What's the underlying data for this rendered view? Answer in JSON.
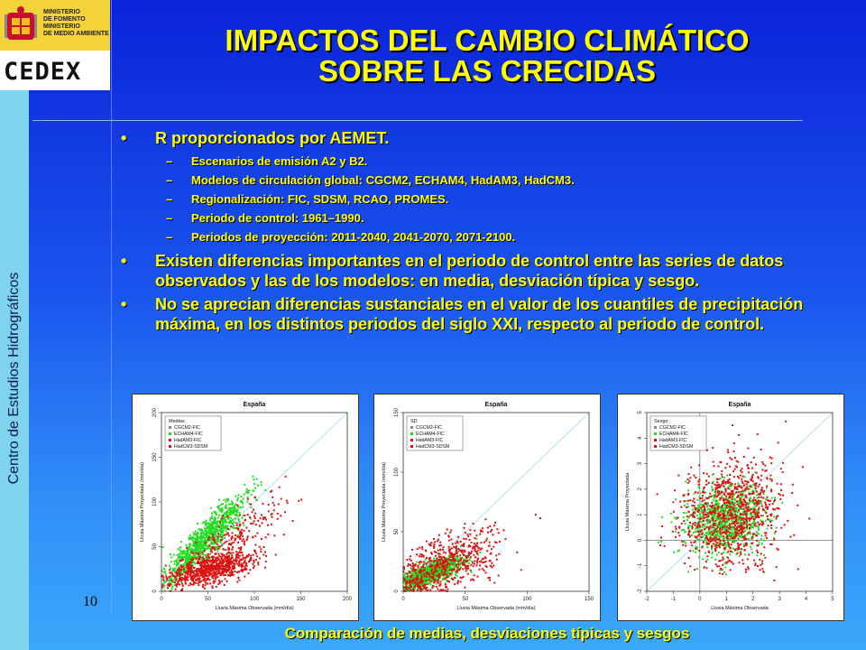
{
  "sidebar": {
    "vertical_text": "Centro de Estudios Hidrográficos"
  },
  "logos": {
    "ministry_lines": [
      "MINISTERIO",
      "DE FOMENTO",
      "MINISTERIO",
      "DE MEDIO AMBIENTE"
    ],
    "cedex_text": "CEDEX"
  },
  "title": {
    "line1": "IMPACTOS DEL CAMBIO CLIMÁTICO",
    "line2": "SOBRE LAS CRECIDAS"
  },
  "bullets": {
    "b1": "R proporcionados por AEMET.",
    "sub": [
      "Escenarios de emisión A2 y B2.",
      "Modelos de circulación global: CGCM2, ECHAM4, HadAM3, HadCM3.",
      "Regionalización: FIC, SDSM, RCAO, PROMES.",
      "Periodo de control: 1961–1990.",
      "Periodos de proyección: 2011-2040, 2041-2070, 2071-2100."
    ],
    "b2": "Existen diferencias importantes en el periodo de control entre las series de datos observados y las de los modelos: en media, desviación típica y sesgo.",
    "b3": "No se aprecian diferencias sustanciales en el valor de los cuantiles de precipitación máxima, en los distintos periodos del siglo XXI, respecto al periodo de control."
  },
  "page_number": "10",
  "caption": "Comparación de medias, desviaciones típicas y sesgos",
  "colors": {
    "title": "#ffff00",
    "green": "#22dd22",
    "red": "#dd1111",
    "grey": "#888888",
    "ref_line": "#9fd8ee"
  },
  "chart_data": [
    {
      "type": "scatter",
      "title": "España",
      "xlabel": "Lluvia Máxima Observada (mm/día)",
      "ylabel": "Lluvia Máxima Proyectada (mm/día)",
      "xlim": [
        0,
        200
      ],
      "ylim": [
        0,
        200
      ],
      "xticks": [
        "0",
        "50",
        "100",
        "150",
        "200"
      ],
      "yticks": [
        "0",
        "50",
        "100",
        "150",
        "200"
      ],
      "legend_title": "Medias",
      "legend_placement": "top-left",
      "series": [
        {
          "name": "CGCM2-FIC",
          "color": "#888888",
          "cloud": {
            "cx": 40,
            "cy": 44,
            "sx": 18,
            "sy": 18,
            "rho": 0.85,
            "n": 80
          }
        },
        {
          "name": "ECHAM4-FIC",
          "color": "#22dd22",
          "cloud": {
            "cx": 48,
            "cy": 58,
            "sx": 22,
            "sy": 24,
            "rho": 0.9,
            "n": 900
          }
        },
        {
          "name": "HadAM3-FIC",
          "color": "#dd1111",
          "cloud": {
            "cx": 55,
            "cy": 25,
            "sx": 25,
            "sy": 10,
            "rho": 0.6,
            "n": 700
          }
        },
        {
          "name": "HadCM3-SDSM",
          "color": "#dd1111",
          "cloud": {
            "cx": 75,
            "cy": 55,
            "sx": 28,
            "sy": 25,
            "rho": 0.8,
            "n": 250
          }
        }
      ]
    },
    {
      "type": "scatter",
      "title": "España",
      "xlabel": "Lluvia Máxima Observada (mm/día)",
      "ylabel": "Lluvia Máxima Proyectada (mm/día)",
      "xlim": [
        0,
        150
      ],
      "ylim": [
        0,
        150
      ],
      "xticks": [
        "0",
        "50",
        "100",
        "150"
      ],
      "yticks": [
        "0",
        "50",
        "100",
        "150"
      ],
      "legend_title": "SD",
      "legend_placement": "top-left",
      "series": [
        {
          "name": "CGCM2-FIC",
          "color": "#888888",
          "cloud": {
            "cx": 15,
            "cy": 13,
            "sx": 8,
            "sy": 6,
            "rho": 0.8,
            "n": 80
          }
        },
        {
          "name": "ECHAM4-FIC",
          "color": "#22dd22",
          "cloud": {
            "cx": 22,
            "cy": 15,
            "sx": 14,
            "sy": 7,
            "rho": 0.75,
            "n": 900
          }
        },
        {
          "name": "HadAM3-FIC",
          "color": "#dd1111",
          "cloud": {
            "cx": 35,
            "cy": 24,
            "sx": 25,
            "sy": 15,
            "rho": 0.6,
            "n": 450
          }
        },
        {
          "name": "HadCM3-SDSM",
          "color": "#dd1111",
          "cloud": {
            "cx": 30,
            "cy": 20,
            "sx": 20,
            "sy": 10,
            "rho": 0.6,
            "n": 150
          }
        }
      ]
    },
    {
      "type": "scatter",
      "title": "España",
      "xlabel": "Lluvia Máxima Observada",
      "ylabel": "Lluvia Máxima Proyectada",
      "xlim": [
        -2,
        5
      ],
      "ylim": [
        -2,
        5
      ],
      "xticks": [
        "-2",
        "-1",
        "0",
        "1",
        "2",
        "3",
        "4",
        "5"
      ],
      "yticks": [
        "-2",
        "-1",
        "0",
        "1",
        "2",
        "3",
        "4",
        "5"
      ],
      "legend_title": "Sesgo",
      "legend_placement": "top-left",
      "series": [
        {
          "name": "CGCM2-FIC",
          "color": "#888888",
          "cloud": {
            "cx": 1.0,
            "cy": 0.9,
            "sx": 0.6,
            "sy": 0.6,
            "rho": 0.1,
            "n": 80
          }
        },
        {
          "name": "ECHAM4-FIC",
          "color": "#22dd22",
          "cloud": {
            "cx": 1.0,
            "cy": 0.8,
            "sx": 0.75,
            "sy": 0.7,
            "rho": 0.1,
            "n": 900
          }
        },
        {
          "name": "HadAM3-FIC",
          "color": "#dd1111",
          "cloud": {
            "cx": 1.2,
            "cy": 1.1,
            "sx": 0.9,
            "sy": 1.0,
            "rho": 0.1,
            "n": 700
          }
        },
        {
          "name": "HadCM3-SDSM",
          "color": "#dd1111",
          "cloud": {
            "cx": 1.4,
            "cy": 1.3,
            "sx": 1.0,
            "sy": 1.1,
            "rho": 0.1,
            "n": 200
          }
        }
      ]
    }
  ]
}
